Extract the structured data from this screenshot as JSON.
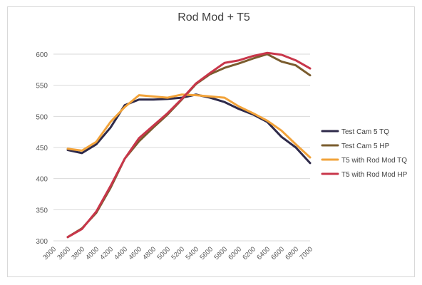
{
  "chart_data": {
    "type": "line",
    "title": "Rod Mod + T5",
    "x": [
      3600,
      3800,
      4000,
      4200,
      4400,
      4600,
      4800,
      5000,
      5200,
      5400,
      5600,
      5800,
      6000,
      6200,
      6400,
      6600,
      6800,
      7000
    ],
    "x_ticks": [
      "3000",
      "3600",
      "3800",
      "4000",
      "4200",
      "4400",
      "4600",
      "4800",
      "5000",
      "5200",
      "5400",
      "5600",
      "5800",
      "6000",
      "6200",
      "6400",
      "6600",
      "6800",
      "7000"
    ],
    "ylim": [
      300,
      600
    ],
    "y_ticks": [
      300,
      350,
      400,
      450,
      500,
      550,
      600
    ],
    "grid": true,
    "legend": "right",
    "series": [
      {
        "name": "Test Cam 5 TQ",
        "color": "#2e2a4a",
        "values": [
          446,
          441,
          455,
          482,
          518,
          527,
          527,
          528,
          530,
          535,
          530,
          523,
          512,
          503,
          491,
          467,
          450,
          425
        ]
      },
      {
        "name": "Test Cam 5 HP",
        "color": "#7a5c2e",
        "values": [
          306,
          320,
          345,
          385,
          432,
          460,
          482,
          503,
          527,
          552,
          568,
          578,
          585,
          593,
          600,
          588,
          582,
          566
        ]
      },
      {
        "name": "T5 with Rod Mod TQ",
        "color": "#f2a33a",
        "values": [
          448,
          445,
          459,
          491,
          515,
          534,
          532,
          530,
          535,
          534,
          532,
          530,
          516,
          505,
          493,
          477,
          455,
          434
        ]
      },
      {
        "name": "T5 with Rod Mod HP",
        "color": "#c8364a",
        "values": [
          306,
          319,
          347,
          388,
          432,
          465,
          485,
          505,
          528,
          553,
          570,
          586,
          590,
          597,
          602,
          599,
          590,
          577
        ]
      }
    ]
  }
}
